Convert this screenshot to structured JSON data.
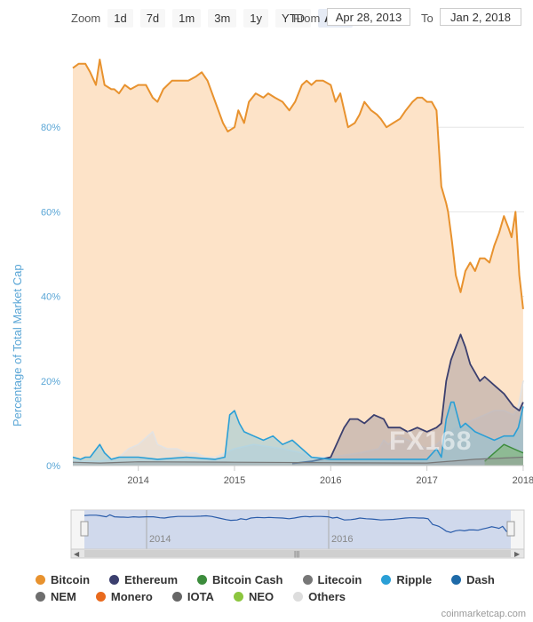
{
  "toolbar": {
    "zoom_label": "Zoom",
    "buttons": [
      "1d",
      "7d",
      "1m",
      "3m",
      "1y",
      "YTD",
      "ALL"
    ],
    "from_label": "From",
    "from_value": "Apr 28, 2013",
    "to_label": "To",
    "to_value": "Jan 2, 2018"
  },
  "watermark": "FX168",
  "credit": "coinmarketcap.com",
  "colors": {
    "bitcoin": "#e8922e",
    "bitcoin_fill": "#fde3c8",
    "ethereum": "#3b3f6e",
    "bitcoin_cash": "#3c8c3c",
    "litecoin": "#777777",
    "ripple": "#2a9fd6",
    "dash": "#1e6aa8",
    "nem": "#6e6e6e",
    "monero": "#e96a1e",
    "iota": "#666666",
    "neo": "#8cc63f",
    "others": "#dddddd"
  },
  "legend": [
    {
      "label": "Bitcoin",
      "color": "#e8922e"
    },
    {
      "label": "Ethereum",
      "color": "#3b3f6e"
    },
    {
      "label": "Bitcoin Cash",
      "color": "#3c8c3c"
    },
    {
      "label": "Litecoin",
      "color": "#777777"
    },
    {
      "label": "Ripple",
      "color": "#2a9fd6"
    },
    {
      "label": "Dash",
      "color": "#1e6aa8"
    },
    {
      "label": "NEM",
      "color": "#6e6e6e"
    },
    {
      "label": "Monero",
      "color": "#e96a1e"
    },
    {
      "label": "IOTA",
      "color": "#666666"
    },
    {
      "label": "NEO",
      "color": "#8cc63f"
    },
    {
      "label": "Others",
      "color": "#dddddd"
    }
  ],
  "navigator": {
    "tick_labels": [
      "2014",
      "2016"
    ]
  },
  "chart_data": {
    "type": "area",
    "title": "",
    "xlabel": "",
    "ylabel": "Percentage of Total Market Cap",
    "xlim": [
      2013.32,
      2018.01
    ],
    "ylim": [
      0,
      100
    ],
    "x_ticks": [
      2014,
      2015,
      2016,
      2017,
      2018
    ],
    "y_ticks": [
      0,
      20,
      40,
      60,
      80
    ],
    "y_tick_labels": [
      "0%",
      "20%",
      "40%",
      "60%",
      "80%"
    ],
    "grid": true,
    "legend_position": "bottom",
    "series": [
      {
        "name": "Bitcoin",
        "x": [
          2013.32,
          2013.38,
          2013.45,
          2013.5,
          2013.56,
          2013.6,
          2013.65,
          2013.72,
          2013.75,
          2013.8,
          2013.86,
          2013.92,
          2014.0,
          2014.08,
          2014.15,
          2014.2,
          2014.26,
          2014.35,
          2014.45,
          2014.52,
          2014.6,
          2014.66,
          2014.72,
          2014.8,
          2014.88,
          2014.93,
          2015.0,
          2015.04,
          2015.1,
          2015.15,
          2015.22,
          2015.3,
          2015.35,
          2015.42,
          2015.5,
          2015.57,
          2015.63,
          2015.7,
          2015.75,
          2015.8,
          2015.85,
          2015.92,
          2016.0,
          2016.05,
          2016.1,
          2016.18,
          2016.25,
          2016.3,
          2016.35,
          2016.42,
          2016.48,
          2016.52,
          2016.58,
          2016.65,
          2016.72,
          2016.78,
          2016.85,
          2016.9,
          2016.95,
          2017.0,
          2017.05,
          2017.1,
          2017.15,
          2017.2,
          2017.22,
          2017.26,
          2017.3,
          2017.35,
          2017.4,
          2017.45,
          2017.5,
          2017.55,
          2017.6,
          2017.65,
          2017.7,
          2017.75,
          2017.8,
          2017.85,
          2017.88,
          2017.92,
          2017.96,
          2018.0
        ],
        "values": [
          94,
          95,
          95,
          93,
          90,
          96,
          90,
          89,
          89,
          88,
          90,
          89,
          90,
          90,
          87,
          86,
          89,
          91,
          91,
          91,
          92,
          93,
          91,
          86,
          81,
          79,
          80,
          84,
          81,
          86,
          88,
          87,
          88,
          87,
          86,
          84,
          86,
          90,
          91,
          90,
          91,
          91,
          90,
          86,
          88,
          80,
          81,
          83,
          86,
          84,
          83,
          82,
          80,
          81,
          82,
          84,
          86,
          87,
          87,
          86,
          86,
          84,
          66,
          62,
          60,
          53,
          45,
          41,
          46,
          48,
          46,
          49,
          49,
          48,
          52,
          55,
          59,
          56,
          54,
          60,
          45,
          37
        ]
      },
      {
        "name": "Ethereum",
        "x": [
          2015.6,
          2015.8,
          2016.0,
          2016.1,
          2016.14,
          2016.2,
          2016.28,
          2016.35,
          2016.45,
          2016.55,
          2016.6,
          2016.65,
          2016.72,
          2016.8,
          2016.9,
          2017.0,
          2017.1,
          2017.15,
          2017.2,
          2017.25,
          2017.3,
          2017.35,
          2017.4,
          2017.45,
          2017.5,
          2017.55,
          2017.6,
          2017.7,
          2017.8,
          2017.9,
          2017.96,
          2018.0
        ],
        "values": [
          0.5,
          1,
          2,
          7,
          9,
          11,
          11,
          10,
          12,
          11,
          9,
          9,
          9,
          8,
          9,
          8,
          9,
          10,
          20,
          25,
          28,
          31,
          28,
          24,
          22,
          20,
          21,
          19,
          17,
          14,
          13,
          15
        ]
      },
      {
        "name": "Bitcoin Cash",
        "x": [
          2017.6,
          2017.7,
          2017.8,
          2017.9,
          2018.0
        ],
        "values": [
          1,
          3,
          5,
          4,
          3
        ]
      },
      {
        "name": "Litecoin",
        "x": [
          2013.32,
          2013.6,
          2014.0,
          2015.0,
          2016.0,
          2017.0,
          2017.5,
          2018.0
        ],
        "values": [
          0.8,
          0.6,
          0.9,
          0.8,
          0.7,
          0.6,
          1.5,
          2
        ]
      },
      {
        "name": "Ripple",
        "x": [
          2013.32,
          2013.4,
          2013.45,
          2013.5,
          2013.6,
          2013.65,
          2013.72,
          2013.8,
          2013.9,
          2014.0,
          2014.2,
          2014.5,
          2014.8,
          2014.9,
          2014.95,
          2015.0,
          2015.05,
          2015.1,
          2015.2,
          2015.3,
          2015.4,
          2015.5,
          2015.6,
          2015.8,
          2016.0,
          2016.5,
          2017.0,
          2017.1,
          2017.15,
          2017.2,
          2017.25,
          2017.28,
          2017.35,
          2017.4,
          2017.5,
          2017.6,
          2017.7,
          2017.8,
          2017.9,
          2017.95,
          2018.0
        ],
        "values": [
          2,
          1.5,
          2,
          2,
          5,
          3,
          1.5,
          2,
          2,
          2,
          1.5,
          2,
          1.5,
          2,
          12,
          13,
          10,
          8,
          7,
          6,
          7,
          5,
          6,
          2,
          1.5,
          1.5,
          1.5,
          4,
          2,
          11,
          15,
          15,
          9,
          10,
          8,
          7,
          6,
          7,
          7,
          9,
          14
        ]
      },
      {
        "name": "Others",
        "x": [
          2013.32,
          2013.6,
          2013.8,
          2013.9,
          2014.0,
          2014.15,
          2014.2,
          2014.3,
          2014.4,
          2014.5,
          2014.6,
          2014.7,
          2014.8,
          2014.9,
          2015.0,
          2015.2,
          2015.5,
          2015.7,
          2015.8,
          2016.0,
          2016.3,
          2016.5,
          2016.55,
          2016.6,
          2016.7,
          2016.8,
          2016.9,
          2017.0,
          2017.1,
          2017.2,
          2017.3,
          2017.4,
          2017.5,
          2017.6,
          2017.7,
          2017.8,
          2017.9,
          2017.95,
          2018.0
        ],
        "values": [
          1,
          1,
          2,
          4,
          5,
          8,
          5,
          4,
          4,
          3,
          3,
          2,
          2,
          3,
          4,
          5,
          4,
          3,
          2,
          2,
          3,
          4,
          6,
          5,
          7,
          6,
          5,
          4,
          5,
          7,
          9,
          10,
          11,
          12,
          13,
          13,
          12,
          14,
          20
        ]
      }
    ]
  }
}
